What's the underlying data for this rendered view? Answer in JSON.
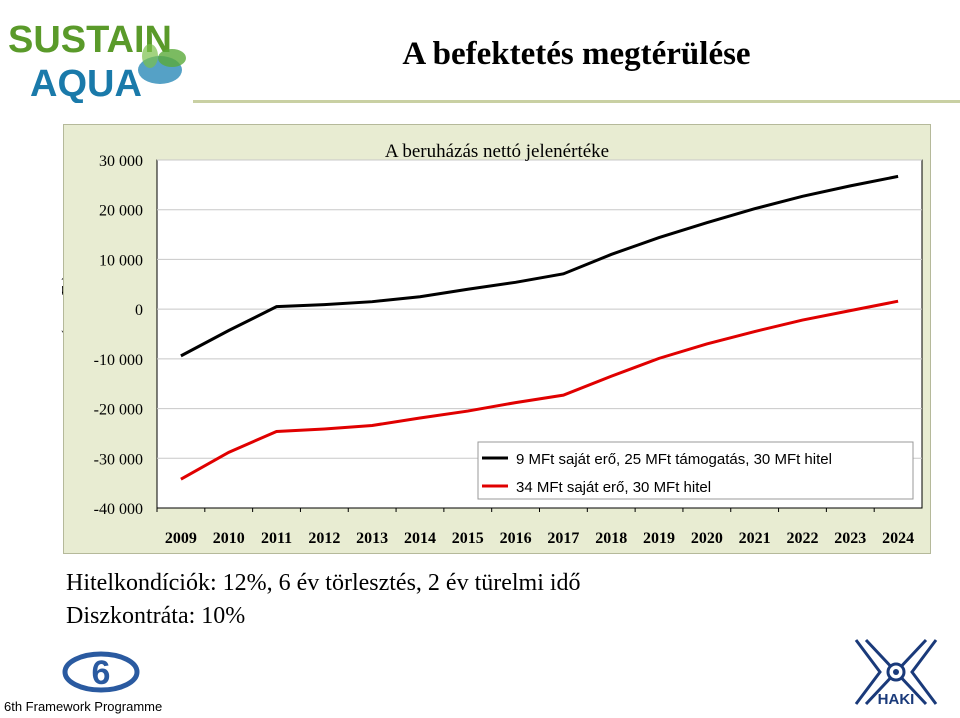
{
  "logo": {
    "line1": "SUSTAIN",
    "line2": "AQUA"
  },
  "header": {
    "title": "A befektetés megtérülése"
  },
  "chart_data": {
    "type": "line",
    "title": "A beruházás nettó jelenértéke",
    "ylabel": "(ezer Ft)",
    "xlabel": "",
    "categories": [
      "2009",
      "2010",
      "2011",
      "2012",
      "2013",
      "2014",
      "2015",
      "2016",
      "2017",
      "2018",
      "2019",
      "2020",
      "2021",
      "2022",
      "2023",
      "2024"
    ],
    "ylim": [
      -40000,
      30000
    ],
    "yticks": [
      30000,
      20000,
      10000,
      0,
      -10000,
      -20000,
      -30000,
      -40000
    ],
    "ytick_labels": [
      "30 000",
      "20 000",
      "10 000",
      "0",
      "-10 000",
      "-20 000",
      "-30 000",
      "-40 000"
    ],
    "grid": true,
    "legend_position": "bottom-right",
    "series": [
      {
        "name": "9 MFt saját erő, 25 MFt támogatás, 30 MFt hitel",
        "color": "#000000",
        "values": [
          -9400,
          -4300,
          500,
          900,
          1500,
          2500,
          4000,
          5400,
          7100,
          11000,
          14400,
          17400,
          20200,
          22700,
          24800,
          26700
        ]
      },
      {
        "name": "34 MFt saját erő, 30 MFt hitel",
        "color": "#e00000",
        "values": [
          -34200,
          -28800,
          -24600,
          -24100,
          -23400,
          -21900,
          -20500,
          -18800,
          -17300,
          -13500,
          -9900,
          -7000,
          -4500,
          -2200,
          -300,
          1600
        ]
      }
    ]
  },
  "footer": {
    "conditions": "Hitelkondíciók: 12%, 6 év törlesztés, 2 év türelmi idő",
    "discount": "Diszkontráta: 10%",
    "programme": "6th Framework Programme",
    "haki": "HAKI"
  }
}
